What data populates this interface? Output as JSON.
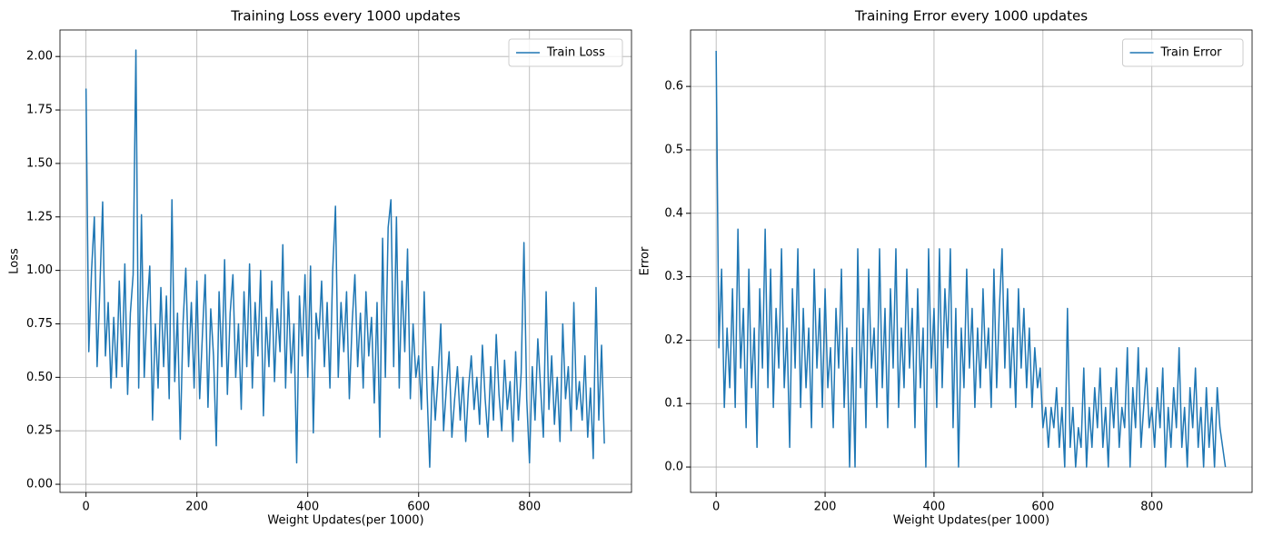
{
  "chart_data": [
    {
      "type": "line",
      "title": "Training Loss every 1000 updates",
      "xlabel": "Weight Updates(per 1000)",
      "ylabel": "Loss",
      "x": [
        0,
        5,
        10,
        15,
        20,
        25,
        30,
        35,
        40,
        45,
        50,
        55,
        60,
        65,
        70,
        75,
        80,
        85,
        90,
        95,
        100,
        105,
        110,
        115,
        120,
        125,
        130,
        135,
        140,
        145,
        150,
        155,
        160,
        165,
        170,
        175,
        180,
        185,
        190,
        195,
        200,
        205,
        210,
        215,
        220,
        225,
        230,
        235,
        240,
        245,
        250,
        255,
        260,
        265,
        270,
        275,
        280,
        285,
        290,
        295,
        300,
        305,
        310,
        315,
        320,
        325,
        330,
        335,
        340,
        345,
        350,
        355,
        360,
        365,
        370,
        375,
        380,
        385,
        390,
        395,
        400,
        405,
        410,
        415,
        420,
        425,
        430,
        435,
        440,
        445,
        450,
        455,
        460,
        465,
        470,
        475,
        480,
        485,
        490,
        495,
        500,
        505,
        510,
        515,
        520,
        525,
        530,
        535,
        540,
        545,
        550,
        555,
        560,
        565,
        570,
        575,
        580,
        585,
        590,
        595,
        600,
        605,
        610,
        615,
        620,
        625,
        630,
        635,
        640,
        645,
        650,
        655,
        660,
        665,
        670,
        675,
        680,
        685,
        690,
        695,
        700,
        705,
        710,
        715,
        720,
        725,
        730,
        735,
        740,
        745,
        750,
        755,
        760,
        765,
        770,
        775,
        780,
        785,
        790,
        795,
        800,
        805,
        810,
        815,
        820,
        825,
        830,
        835,
        840,
        845,
        850,
        855,
        860,
        865,
        870,
        875,
        880,
        885,
        890,
        895,
        900,
        905,
        910,
        915,
        920,
        925,
        930,
        935
      ],
      "series": [
        {
          "name": "Train Loss",
          "color": "#1f77b4",
          "values": [
            1.85,
            0.62,
            1.0,
            1.25,
            0.55,
            0.92,
            1.32,
            0.6,
            0.85,
            0.45,
            0.78,
            0.5,
            0.95,
            0.55,
            1.03,
            0.42,
            0.8,
            0.98,
            2.03,
            0.45,
            1.26,
            0.5,
            0.82,
            1.02,
            0.3,
            0.75,
            0.45,
            0.92,
            0.55,
            0.88,
            0.4,
            1.33,
            0.48,
            0.8,
            0.21,
            0.75,
            1.01,
            0.55,
            0.85,
            0.45,
            0.95,
            0.4,
            0.7,
            0.98,
            0.36,
            0.82,
            0.6,
            0.18,
            0.9,
            0.55,
            1.05,
            0.42,
            0.8,
            0.98,
            0.5,
            0.75,
            0.35,
            0.9,
            0.55,
            1.03,
            0.45,
            0.85,
            0.6,
            1.0,
            0.32,
            0.78,
            0.55,
            0.95,
            0.48,
            0.82,
            0.62,
            1.12,
            0.45,
            0.9,
            0.52,
            0.75,
            0.1,
            0.88,
            0.6,
            0.98,
            0.5,
            1.02,
            0.24,
            0.8,
            0.68,
            0.95,
            0.55,
            0.85,
            0.45,
            1.0,
            1.3,
            0.5,
            0.85,
            0.62,
            0.9,
            0.4,
            0.75,
            0.98,
            0.55,
            0.8,
            0.45,
            0.9,
            0.6,
            0.78,
            0.38,
            0.85,
            0.22,
            1.15,
            0.5,
            1.2,
            1.33,
            0.55,
            1.25,
            0.45,
            0.95,
            0.62,
            1.1,
            0.4,
            0.75,
            0.5,
            0.6,
            0.35,
            0.9,
            0.45,
            0.08,
            0.55,
            0.3,
            0.5,
            0.75,
            0.25,
            0.45,
            0.62,
            0.22,
            0.4,
            0.55,
            0.3,
            0.5,
            0.2,
            0.45,
            0.6,
            0.35,
            0.5,
            0.28,
            0.65,
            0.4,
            0.22,
            0.55,
            0.3,
            0.7,
            0.42,
            0.25,
            0.58,
            0.35,
            0.48,
            0.2,
            0.62,
            0.3,
            0.52,
            1.13,
            0.4,
            0.1,
            0.55,
            0.3,
            0.68,
            0.45,
            0.22,
            0.9,
            0.35,
            0.6,
            0.28,
            0.5,
            0.2,
            0.75,
            0.4,
            0.55,
            0.25,
            0.85,
            0.35,
            0.48,
            0.3,
            0.6,
            0.22,
            0.45,
            0.12,
            0.92,
            0.3,
            0.65,
            0.19
          ]
        }
      ],
      "xlim": [
        -47,
        984
      ],
      "ylim": [
        -0.038,
        2.124
      ],
      "xticks": [
        0,
        200,
        400,
        600,
        800
      ],
      "yticks": [
        {
          "value": 0,
          "label": "0.00"
        },
        {
          "value": 0.25,
          "label": "0.25"
        },
        {
          "value": 0.5,
          "label": "0.50"
        },
        {
          "value": 0.75,
          "label": "0.75"
        },
        {
          "value": 1,
          "label": "1.00"
        },
        {
          "value": 1.25,
          "label": "1.25"
        },
        {
          "value": 1.5,
          "label": "1.50"
        },
        {
          "value": 1.75,
          "label": "1.75"
        },
        {
          "value": 2,
          "label": "2.00"
        }
      ],
      "grid": true,
      "legend": "upper right"
    },
    {
      "type": "line",
      "title": "Training Error every 1000 updates",
      "xlabel": "Weight Updates(per 1000)",
      "ylabel": "Error",
      "x": [
        0,
        5,
        10,
        15,
        20,
        25,
        30,
        35,
        40,
        45,
        50,
        55,
        60,
        65,
        70,
        75,
        80,
        85,
        90,
        95,
        100,
        105,
        110,
        115,
        120,
        125,
        130,
        135,
        140,
        145,
        150,
        155,
        160,
        165,
        170,
        175,
        180,
        185,
        190,
        195,
        200,
        205,
        210,
        215,
        220,
        225,
        230,
        235,
        240,
        245,
        250,
        255,
        260,
        265,
        270,
        275,
        280,
        285,
        290,
        295,
        300,
        305,
        310,
        315,
        320,
        325,
        330,
        335,
        340,
        345,
        350,
        355,
        360,
        365,
        370,
        375,
        380,
        385,
        390,
        395,
        400,
        405,
        410,
        415,
        420,
        425,
        430,
        435,
        440,
        445,
        450,
        455,
        460,
        465,
        470,
        475,
        480,
        485,
        490,
        495,
        500,
        505,
        510,
        515,
        520,
        525,
        530,
        535,
        540,
        545,
        550,
        555,
        560,
        565,
        570,
        575,
        580,
        585,
        590,
        595,
        600,
        605,
        610,
        615,
        620,
        625,
        630,
        635,
        640,
        645,
        650,
        655,
        660,
        665,
        670,
        675,
        680,
        685,
        690,
        695,
        700,
        705,
        710,
        715,
        720,
        725,
        730,
        735,
        740,
        745,
        750,
        755,
        760,
        765,
        770,
        775,
        780,
        785,
        790,
        795,
        800,
        805,
        810,
        815,
        820,
        825,
        830,
        835,
        840,
        845,
        850,
        855,
        860,
        865,
        870,
        875,
        880,
        885,
        890,
        895,
        900,
        905,
        910,
        915,
        920,
        925,
        930,
        935
      ],
      "series": [
        {
          "name": "Train Error",
          "color": "#1f77b4",
          "values": [
            0.656,
            0.188,
            0.312,
            0.094,
            0.219,
            0.125,
            0.281,
            0.094,
            0.375,
            0.156,
            0.25,
            0.062,
            0.312,
            0.125,
            0.219,
            0.031,
            0.281,
            0.156,
            0.375,
            0.125,
            0.312,
            0.094,
            0.25,
            0.156,
            0.344,
            0.125,
            0.219,
            0.031,
            0.281,
            0.156,
            0.344,
            0.094,
            0.25,
            0.125,
            0.219,
            0.062,
            0.312,
            0.156,
            0.25,
            0.094,
            0.281,
            0.125,
            0.188,
            0.062,
            0.25,
            0.156,
            0.312,
            0.094,
            0.219,
            0.0,
            0.188,
            0.0,
            0.344,
            0.125,
            0.25,
            0.062,
            0.312,
            0.156,
            0.219,
            0.094,
            0.344,
            0.125,
            0.25,
            0.062,
            0.281,
            0.156,
            0.344,
            0.094,
            0.219,
            0.125,
            0.312,
            0.156,
            0.25,
            0.062,
            0.281,
            0.125,
            0.219,
            0.0,
            0.344,
            0.156,
            0.25,
            0.094,
            0.344,
            0.125,
            0.281,
            0.188,
            0.344,
            0.062,
            0.25,
            0.0,
            0.219,
            0.125,
            0.312,
            0.156,
            0.25,
            0.094,
            0.219,
            0.125,
            0.281,
            0.156,
            0.219,
            0.094,
            0.312,
            0.125,
            0.25,
            0.344,
            0.156,
            0.281,
            0.125,
            0.219,
            0.094,
            0.281,
            0.156,
            0.25,
            0.125,
            0.219,
            0.094,
            0.188,
            0.125,
            0.156,
            0.062,
            0.094,
            0.031,
            0.094,
            0.062,
            0.125,
            0.031,
            0.094,
            0.0,
            0.25,
            0.031,
            0.094,
            0.0,
            0.062,
            0.031,
            0.156,
            0.0,
            0.094,
            0.031,
            0.125,
            0.062,
            0.156,
            0.031,
            0.094,
            0.0,
            0.125,
            0.062,
            0.156,
            0.031,
            0.094,
            0.062,
            0.188,
            0.0,
            0.125,
            0.062,
            0.188,
            0.031,
            0.094,
            0.156,
            0.062,
            0.094,
            0.031,
            0.125,
            0.062,
            0.156,
            0.0,
            0.094,
            0.031,
            0.125,
            0.062,
            0.188,
            0.031,
            0.094,
            0.0,
            0.125,
            0.062,
            0.156,
            0.031,
            0.094,
            0.0,
            0.125,
            0.031,
            0.094,
            0.0,
            0.125,
            0.062,
            0.031,
            0.0
          ]
        }
      ],
      "xlim": [
        -47,
        984
      ],
      "ylim": [
        -0.04,
        0.689
      ],
      "xticks": [
        0,
        200,
        400,
        600,
        800
      ],
      "yticks": [
        {
          "value": 0,
          "label": "0.0"
        },
        {
          "value": 0.1,
          "label": "0.1"
        },
        {
          "value": 0.2,
          "label": "0.2"
        },
        {
          "value": 0.3,
          "label": "0.3"
        },
        {
          "value": 0.4,
          "label": "0.4"
        },
        {
          "value": 0.5,
          "label": "0.5"
        },
        {
          "value": 0.6,
          "label": "0.6"
        }
      ],
      "grid": true,
      "legend": "upper right"
    }
  ]
}
